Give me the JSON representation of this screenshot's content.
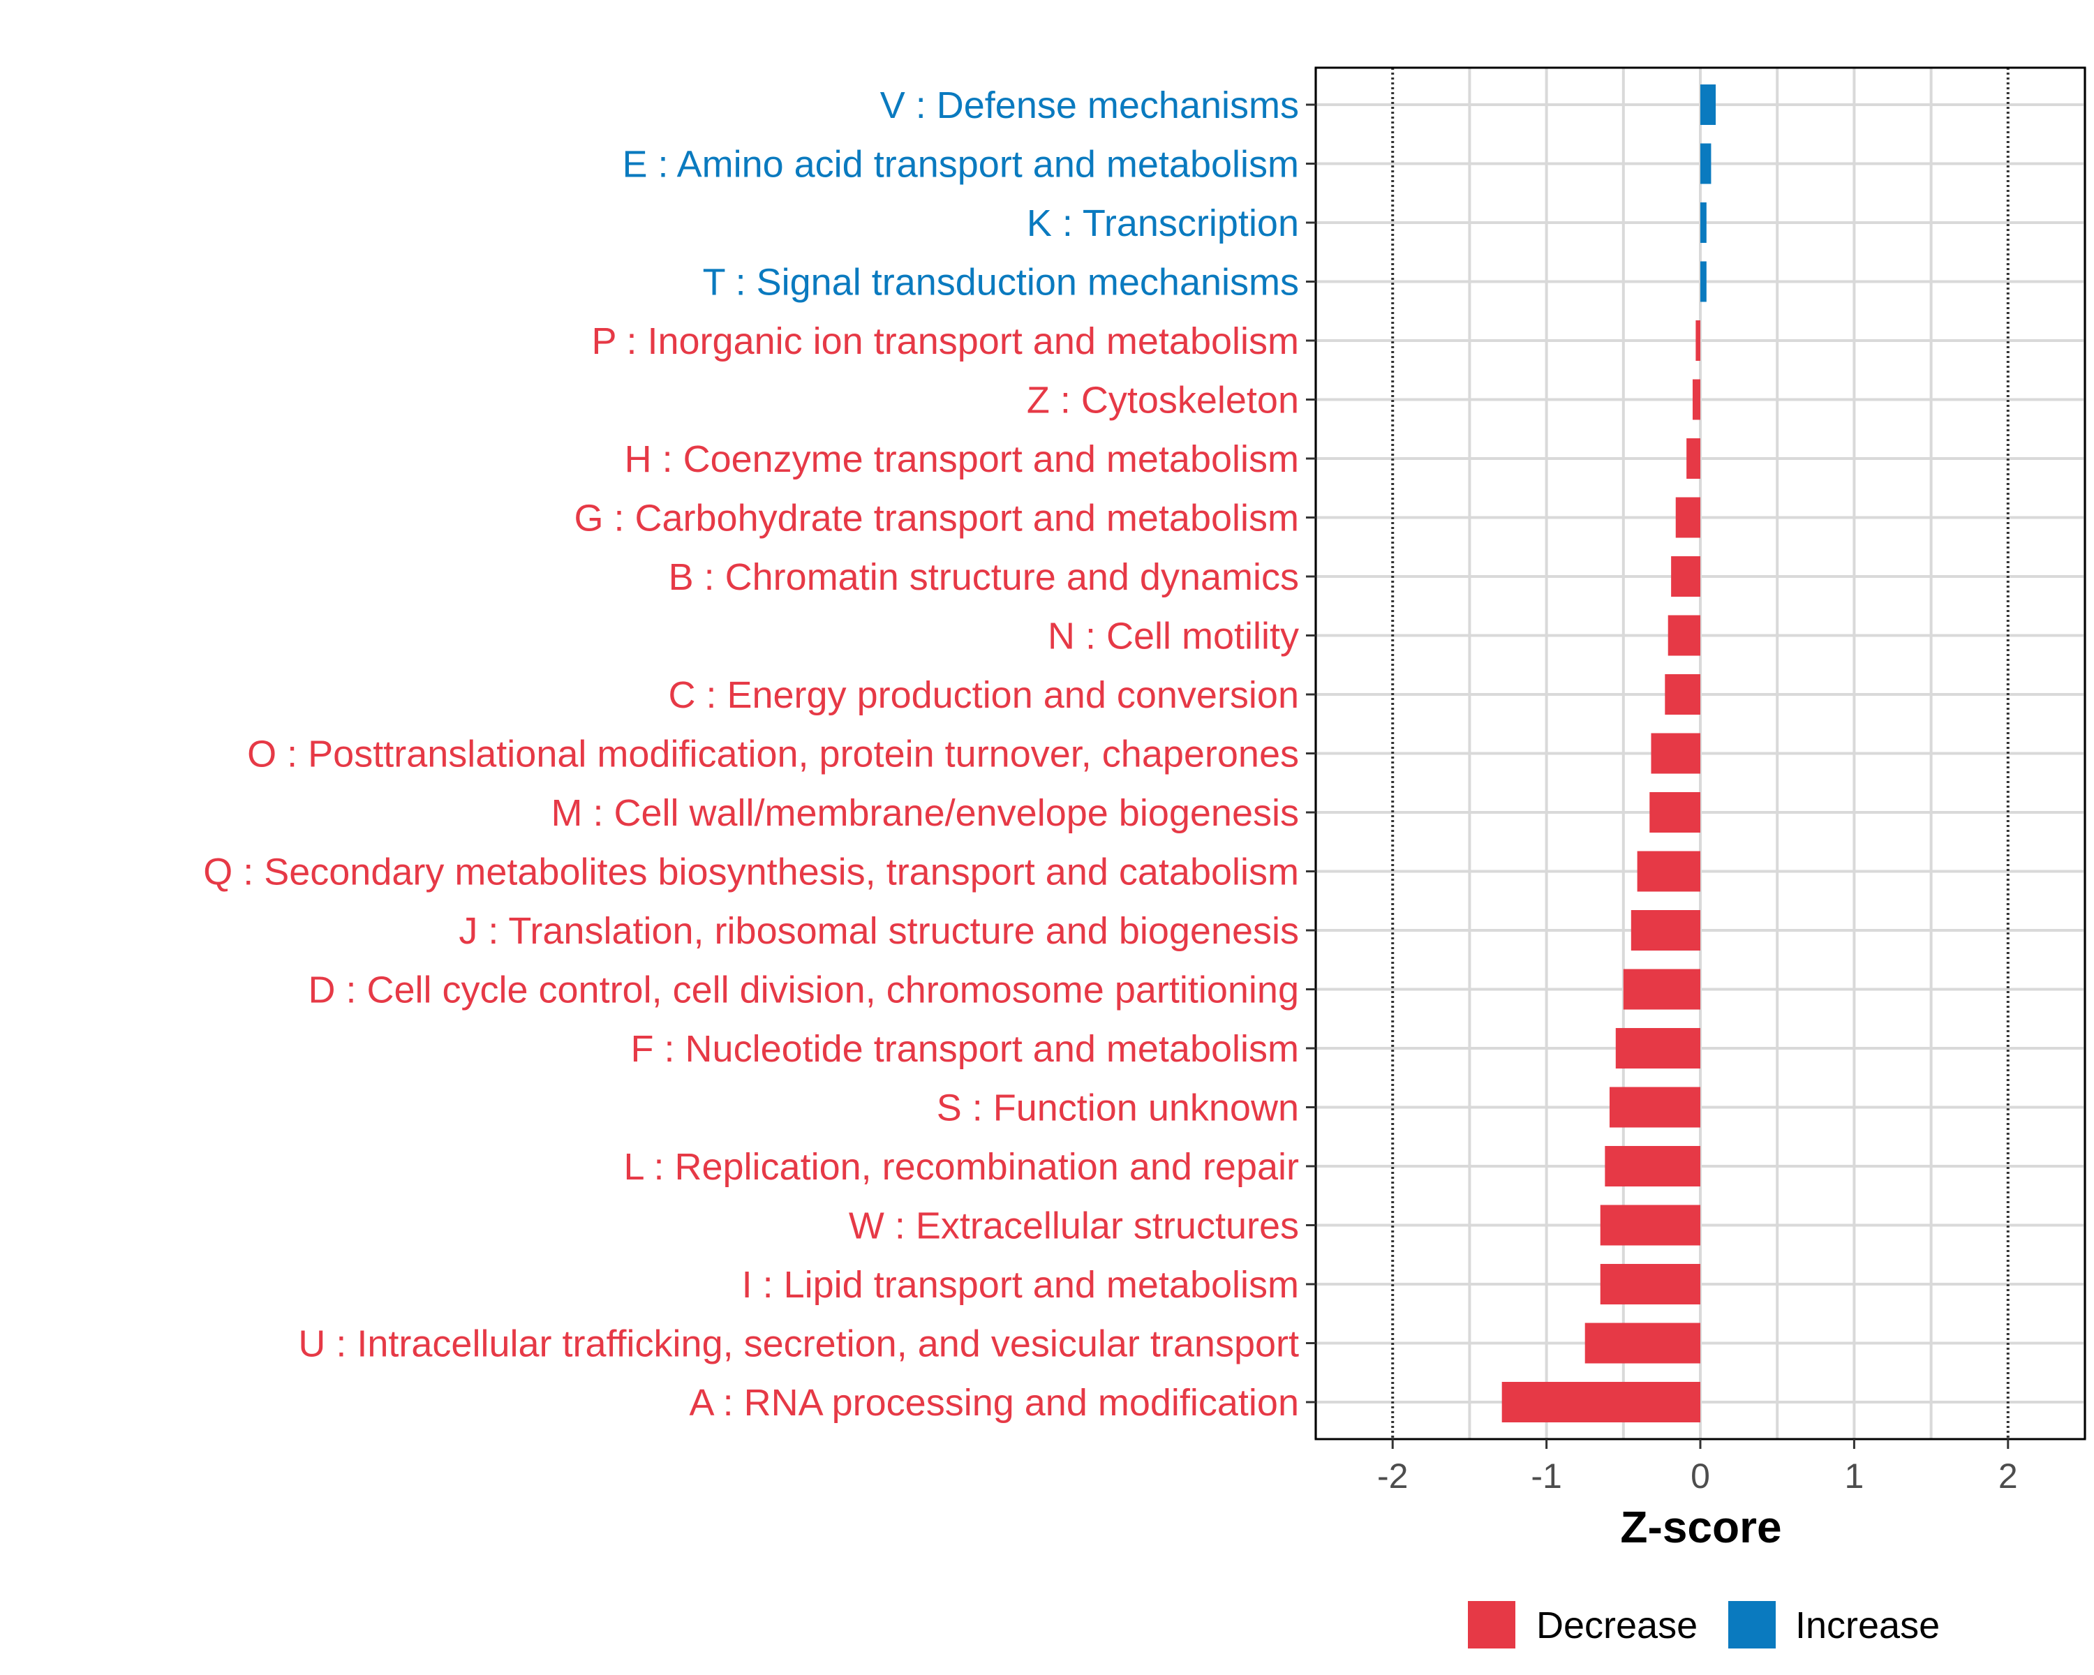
{
  "chart_data": {
    "type": "bar",
    "orientation": "horizontal",
    "title": "",
    "xlabel": "Z-score",
    "ylabel": "",
    "xlim": [
      -2.5,
      2.5
    ],
    "xticks": [
      -2,
      -1,
      0,
      1,
      2
    ],
    "xtick_labels": [
      "-2",
      "-1",
      "0",
      "1",
      "2"
    ],
    "reference_lines": [
      -2,
      2
    ],
    "grid": true,
    "categories": [
      "V : Defense mechanisms",
      "E : Amino acid transport and metabolism",
      "K : Transcription",
      "T : Signal transduction mechanisms",
      "P : Inorganic ion transport and metabolism",
      "Z : Cytoskeleton",
      "H : Coenzyme transport and metabolism",
      "G : Carbohydrate transport and metabolism",
      "B : Chromatin structure and dynamics",
      "N : Cell motility",
      "C : Energy production and conversion",
      "O : Posttranslational modification, protein turnover, chaperones",
      "M : Cell wall/membrane/envelope biogenesis",
      "Q : Secondary metabolites biosynthesis, transport and catabolism",
      "J : Translation, ribosomal structure and biogenesis",
      "D : Cell cycle control, cell division, chromosome partitioning",
      "F : Nucleotide transport and metabolism",
      "S : Function unknown",
      "L : Replication, recombination and repair",
      "W : Extracellular structures",
      "I : Lipid transport and metabolism",
      "U : Intracellular trafficking, secretion, and vesicular transport",
      "A : RNA processing and modification"
    ],
    "values": [
      0.1,
      0.07,
      0.04,
      0.04,
      -0.03,
      -0.05,
      -0.09,
      -0.16,
      -0.19,
      -0.21,
      -0.23,
      -0.32,
      -0.33,
      -0.41,
      -0.45,
      -0.5,
      -0.55,
      -0.59,
      -0.62,
      -0.65,
      -0.65,
      -0.75,
      -1.29
    ],
    "legend": [
      {
        "label": "Decrease",
        "color": "#e63946"
      },
      {
        "label": "Increase",
        "color": "#0a7abf"
      }
    ],
    "legend_position": "bottom",
    "colors": {
      "decrease": "#e63946",
      "increase": "#0a7abf",
      "grid": "#d9d9d9",
      "axis": "#000000"
    }
  }
}
